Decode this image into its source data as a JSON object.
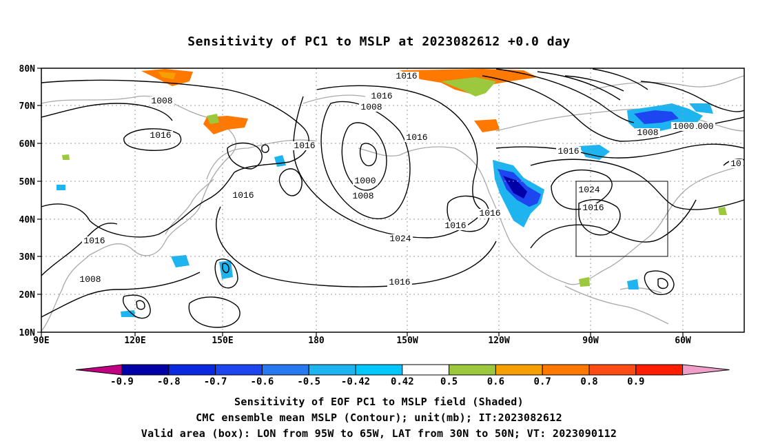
{
  "title": "Sensitivity of PC1 to MSLP at 2023082612 +0.0 day",
  "map": {
    "lon_ticks": [
      "90E",
      "120E",
      "150E",
      "180",
      "150W",
      "120W",
      "90W",
      "60W"
    ],
    "lat_ticks": [
      "10N",
      "20N",
      "30N",
      "40N",
      "50N",
      "60N",
      "70N",
      "80N"
    ],
    "lon_range": [
      "90E",
      "50W"
    ],
    "lat_range": [
      "10N",
      "80N"
    ],
    "grid": "dotted",
    "valid_box": {
      "lon": [
        "95W",
        "65W"
      ],
      "lat": [
        "30N",
        "50N"
      ]
    },
    "contour_labels": [
      "1016",
      "1016",
      "1008",
      "1016",
      "1008",
      "1016",
      "1016",
      "1016",
      "1000",
      "1008",
      "1016",
      "1008",
      "1000",
      "1024",
      "1016",
      "1016",
      "1008",
      "1000",
      "1016",
      "1024",
      "1016",
      "1016",
      "10"
    ]
  },
  "colorbar": {
    "labels": [
      "-0.9",
      "-0.8",
      "-0.7",
      "-0.6",
      "-0.5",
      "-0.42",
      "0.42",
      "0.5",
      "0.6",
      "0.7",
      "0.8",
      "0.9"
    ],
    "colors": [
      "#bf0080",
      "#0000a8",
      "#0a28e0",
      "#1e46f0",
      "#2878f0",
      "#1eb4f0",
      "#00c8ff",
      "#ffffff",
      "#9bc83c",
      "#f5a000",
      "#ff7800",
      "#ff4b14",
      "#ff1e00",
      "#f0a0c8"
    ]
  },
  "captions": [
    "Sensitivity of EOF PC1 to MSLP field (Shaded)",
    "CMC ensemble mean MSLP (Contour); unit(mb); IT:2023082612",
    "Valid area (box): LON from 95W to 65W, LAT from 30N to 50N; VT: 2023090112"
  ]
}
